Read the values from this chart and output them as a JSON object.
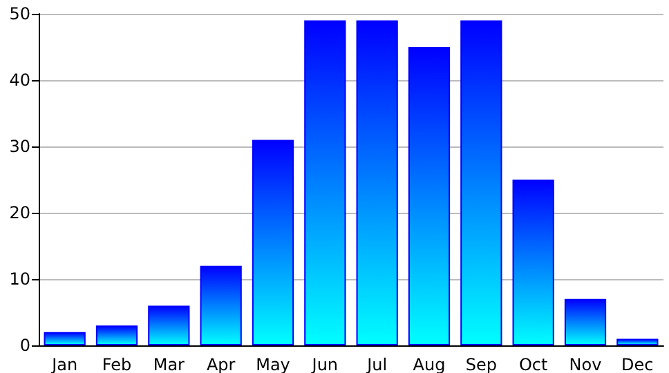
{
  "chart_data": {
    "type": "bar",
    "categories": [
      "Jan",
      "Feb",
      "Mar",
      "Apr",
      "May",
      "Jun",
      "Jul",
      "Aug",
      "Sep",
      "Oct",
      "Nov",
      "Dec"
    ],
    "values": [
      2,
      3,
      6,
      12,
      31,
      49,
      49,
      45,
      49,
      25,
      7,
      1
    ],
    "color": "#0000ff",
    "ylim": [
      0,
      50
    ],
    "yticks": [
      0,
      10,
      20,
      30,
      40,
      50
    ],
    "grid": "y"
  }
}
